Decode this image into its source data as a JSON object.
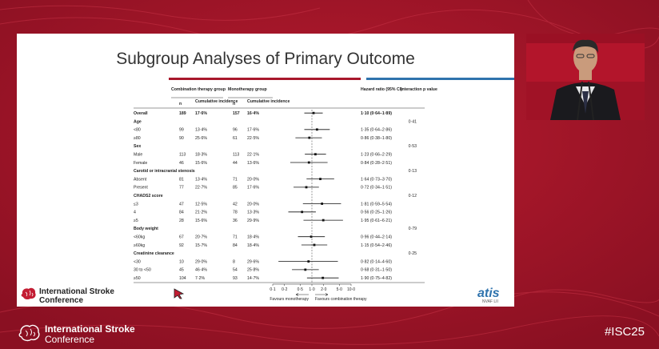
{
  "slide": {
    "title": "Subgroup Analyses of Primary Outcome",
    "conference_name_line1": "International Stroke",
    "conference_name_line2": "Conference",
    "study_logo": "atis",
    "study_logo_sub": "NVAF LII"
  },
  "table": {
    "combo_header": "Combination therapy group",
    "mono_header": "Monotherapy group",
    "n_header": "n",
    "ci_header": "Cumulative incidence",
    "hr_header": "Hazard ratio (95% CI)",
    "p_header": "Interaction p value",
    "rows": [
      {
        "label": "Overall",
        "combo_n": "189",
        "combo_ci": "17·6%",
        "mono_n": "157",
        "mono_ci": "16·4%",
        "hr": "1·10 (0·64–1·89)",
        "p": "",
        "bold": true,
        "point": 1.1,
        "lo": 0.64,
        "hi": 1.89
      },
      {
        "label": "Age",
        "combo_n": "",
        "combo_ci": "",
        "mono_n": "",
        "mono_ci": "",
        "hr": "",
        "p": "0·41",
        "bold": true
      },
      {
        "label": "<80",
        "combo_n": "99",
        "combo_ci": "13·4%",
        "mono_n": "96",
        "mono_ci": "17·6%",
        "hr": "1·35 (0·64–2·86)",
        "p": "",
        "point": 1.35,
        "lo": 0.64,
        "hi": 2.86
      },
      {
        "label": "≥80",
        "combo_n": "90",
        "combo_ci": "25·6%",
        "mono_n": "61",
        "mono_ci": "22·5%",
        "hr": "0·86 (0·38–1·80)",
        "p": "",
        "point": 0.86,
        "lo": 0.38,
        "hi": 1.8
      },
      {
        "label": "Sex",
        "combo_n": "",
        "combo_ci": "",
        "mono_n": "",
        "mono_ci": "",
        "hr": "",
        "p": "0·53",
        "bold": true
      },
      {
        "label": "Male",
        "combo_n": "113",
        "combo_ci": "18·3%",
        "mono_n": "113",
        "mono_ci": "22·1%",
        "hr": "1·23 (0·66–2·29)",
        "p": "",
        "point": 1.23,
        "lo": 0.66,
        "hi": 2.29
      },
      {
        "label": "Female",
        "combo_n": "46",
        "combo_ci": "15·6%",
        "mono_n": "44",
        "mono_ci": "13·6%",
        "hr": "0·84 (0·28–2·51)",
        "p": "",
        "point": 0.84,
        "lo": 0.28,
        "hi": 2.51
      },
      {
        "label": "Carotid or intracranial stenosis",
        "combo_n": "",
        "combo_ci": "",
        "mono_n": "",
        "mono_ci": "",
        "hr": "",
        "p": "0·13",
        "bold": true
      },
      {
        "label": "Absent",
        "combo_n": "81",
        "combo_ci": "13·4%",
        "mono_n": "71",
        "mono_ci": "20·0%",
        "hr": "1·64 (0·73–3·70)",
        "p": "",
        "point": 1.64,
        "lo": 0.73,
        "hi": 3.7
      },
      {
        "label": "Present",
        "combo_n": "77",
        "combo_ci": "22·7%",
        "mono_n": "85",
        "mono_ci": "17·6%",
        "hr": "0·72 (0·34–1·51)",
        "p": "",
        "point": 0.72,
        "lo": 0.34,
        "hi": 1.51
      },
      {
        "label": "CHADS2 score",
        "combo_n": "",
        "combo_ci": "",
        "mono_n": "",
        "mono_ci": "",
        "hr": "",
        "p": "0·12",
        "bold": true
      },
      {
        "label": "≤3",
        "combo_n": "47",
        "combo_ci": "12·5%",
        "mono_n": "42",
        "mono_ci": "20·0%",
        "hr": "1·81 (0·59–5·54)",
        "p": "",
        "point": 1.81,
        "lo": 0.59,
        "hi": 5.54
      },
      {
        "label": "4",
        "combo_n": "84",
        "combo_ci": "21·2%",
        "mono_n": "78",
        "mono_ci": "13·3%",
        "hr": "0·56 (0·25–1·26)",
        "p": "",
        "point": 0.56,
        "lo": 0.25,
        "hi": 1.26
      },
      {
        "label": "≥5",
        "combo_n": "28",
        "combo_ci": "15·6%",
        "mono_n": "36",
        "mono_ci": "29·9%",
        "hr": "1·95 (0·61–6·21)",
        "p": "",
        "point": 1.95,
        "lo": 0.61,
        "hi": 6.21
      },
      {
        "label": "Body weight",
        "combo_n": "",
        "combo_ci": "",
        "mono_n": "",
        "mono_ci": "",
        "hr": "",
        "p": "0·79",
        "bold": true
      },
      {
        "label": "<60kg",
        "combo_n": "67",
        "combo_ci": "20·7%",
        "mono_n": "71",
        "mono_ci": "18·4%",
        "hr": "0·96 (0·44–2·14)",
        "p": "",
        "point": 0.96,
        "lo": 0.44,
        "hi": 2.14
      },
      {
        "label": "≥60kg",
        "combo_n": "92",
        "combo_ci": "15·7%",
        "mono_n": "84",
        "mono_ci": "18·4%",
        "hr": "1·15 (0·54–2·46)",
        "p": "",
        "point": 1.15,
        "lo": 0.54,
        "hi": 2.46
      },
      {
        "label": "Creatinine clearance",
        "combo_n": "",
        "combo_ci": "",
        "mono_n": "",
        "mono_ci": "",
        "hr": "",
        "p": "0·25",
        "bold": true
      },
      {
        "label": "<30",
        "combo_n": "10",
        "combo_ci": "29·0%",
        "mono_n": "8",
        "mono_ci": "29·6%",
        "hr": "0·82 (0·14–4·60)",
        "p": "",
        "point": 0.82,
        "lo": 0.14,
        "hi": 4.6
      },
      {
        "label": "30 to <50",
        "combo_n": "45",
        "combo_ci": "46·4%",
        "mono_n": "54",
        "mono_ci": "25·8%",
        "hr": "0·68 (0·31–1·50)",
        "p": "",
        "point": 0.68,
        "lo": 0.31,
        "hi": 1.5
      },
      {
        "label": "≥50",
        "combo_n": "104",
        "combo_ci": "7·2%",
        "mono_n": "93",
        "mono_ci": "14·7%",
        "hr": "1·90 (0·75–4·82)",
        "p": "",
        "point": 1.9,
        "lo": 0.75,
        "hi": 4.82
      }
    ]
  },
  "chart_data": {
    "type": "scatter",
    "x_scale": "log",
    "x_ticks": [
      "0·1",
      "0·2",
      "0·5",
      "1·0",
      "2·0",
      "5·0",
      "10·0"
    ],
    "x_tick_values": [
      0.1,
      0.2,
      0.5,
      1.0,
      2.0,
      5.0,
      10.0
    ],
    "xlim": [
      0.1,
      10.0
    ],
    "reference_line": 1.0,
    "favours_left": "Favours monotherapy",
    "favours_right": "Favours combination therapy"
  },
  "footer": {
    "conference_line1": "International Stroke",
    "conference_line2": "Conference",
    "hashtag": "#ISC25"
  }
}
